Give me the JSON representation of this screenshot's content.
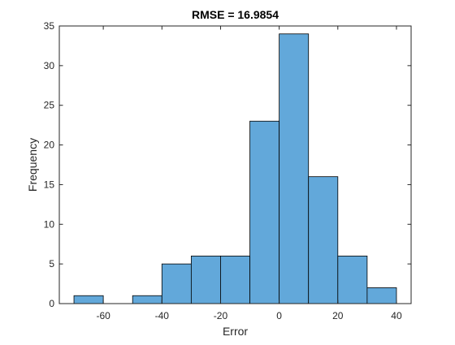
{
  "chart_data": {
    "type": "bar",
    "subtype": "histogram",
    "title": "RMSE = 16.9854",
    "xlabel": "Error",
    "ylabel": "Frequency",
    "xlim": [
      -75,
      45
    ],
    "ylim": [
      0,
      35
    ],
    "xticks": [
      -60,
      -40,
      -20,
      0,
      20,
      40
    ],
    "yticks": [
      0,
      5,
      10,
      15,
      20,
      25,
      30,
      35
    ],
    "bin_edges": [
      -70,
      -60,
      -50,
      -40,
      -30,
      -20,
      -10,
      0,
      10,
      20,
      30,
      40
    ],
    "counts": [
      1,
      0,
      1,
      5,
      6,
      6,
      23,
      34,
      16,
      6,
      2
    ],
    "bar_color": "#62a8da",
    "edge_color": "#000000",
    "grid": false,
    "box": true
  }
}
